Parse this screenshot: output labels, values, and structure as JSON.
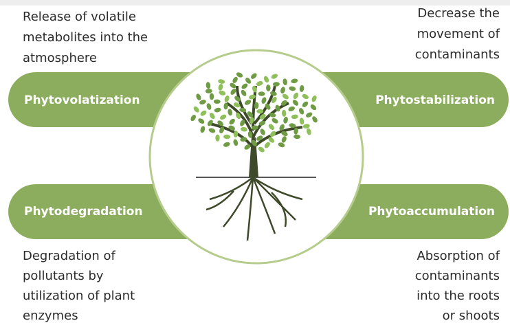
{
  "items": [
    {
      "label": "Phytovolatization",
      "description": [
        "Release of volatile",
        "metabolites into the",
        "atmosphere"
      ]
    },
    {
      "label": "Phytostabilization",
      "description": [
        "Decrease the",
        "movement of",
        "contaminants"
      ]
    },
    {
      "label": "Phytodegradation",
      "description": [
        "Degradation of",
        "pollutants by",
        "utilization of plant",
        "enzymes"
      ]
    },
    {
      "label": "Phytoaccumulation",
      "description": [
        "Absorption of",
        "contaminants",
        "into the roots",
        "or shoots"
      ]
    }
  ]
}
